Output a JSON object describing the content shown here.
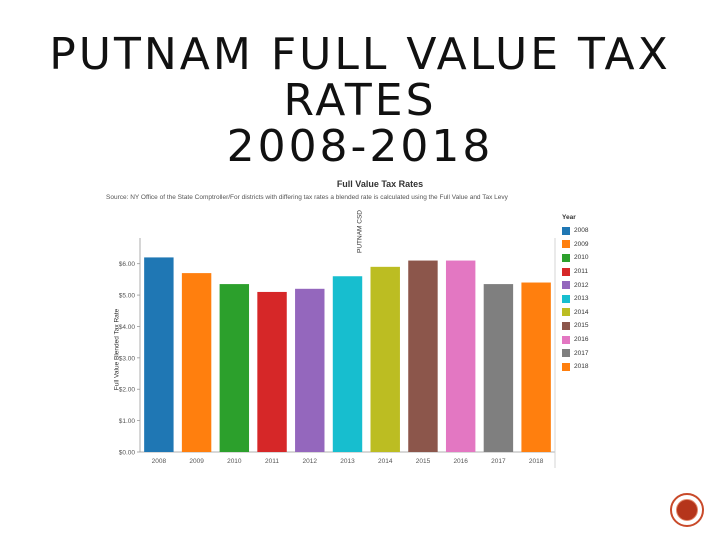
{
  "slide": {
    "title_lines": [
      "PUTNAM FULL VALUE TAX",
      "RATES",
      "2008-2018"
    ]
  },
  "chart_data": {
    "type": "bar",
    "title": "Full Value Tax Rates",
    "subtitle": "Source: NY Office of the State Comptroller/For districts with differing tax rates a blended rate is calculated using the Full Value and Tax Levy",
    "facet_label": "PUTNAM CSD",
    "xlabel": "",
    "ylabel": "Full Value Blended Tax Rate",
    "categories": [
      "2008",
      "2009",
      "2010",
      "2011",
      "2012",
      "2013",
      "2014",
      "2015",
      "2016",
      "2017",
      "2018"
    ],
    "values": [
      6.2,
      5.7,
      5.35,
      5.1,
      5.2,
      5.6,
      5.9,
      6.1,
      6.1,
      5.35,
      5.4
    ],
    "colors": [
      "#1f77b4",
      "#ff7f0e",
      "#2ca02c",
      "#d62728",
      "#9467bd",
      "#17becf",
      "#bcbd22",
      "#8c564b",
      "#e377c2",
      "#7f7f7f",
      "#ff7f0e"
    ],
    "ylim": [
      0,
      6.5
    ],
    "yticks": [
      0,
      1,
      2,
      3,
      4,
      5,
      6
    ],
    "ytick_labels": [
      "$0.00",
      "$1.00",
      "$2.00",
      "$3.00",
      "$4.00",
      "$5.00",
      "$6.00"
    ],
    "grid": false,
    "legend": {
      "title": "Year",
      "placement": "right",
      "entries": [
        "2008",
        "2009",
        "2010",
        "2011",
        "2012",
        "2013",
        "2014",
        "2015",
        "2016",
        "2017",
        "2018"
      ]
    }
  }
}
